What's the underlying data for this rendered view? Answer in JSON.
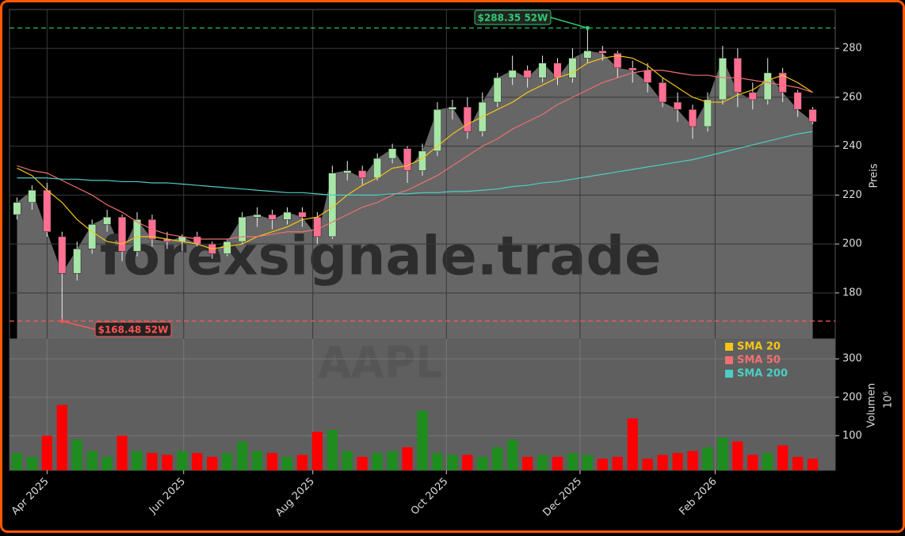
{
  "chart_data": {
    "type": "candlestick",
    "watermark": "forexsignale.trade",
    "symbol": "AAPL",
    "x": [
      0,
      1,
      2,
      3,
      4,
      5,
      6,
      7,
      8,
      9,
      10,
      11,
      12,
      13,
      14,
      15,
      16,
      17,
      18,
      19,
      20,
      21,
      22,
      23,
      24,
      25,
      26,
      27,
      28,
      29,
      30,
      31,
      32,
      33,
      34,
      35,
      36,
      37,
      38,
      39,
      40,
      41,
      42,
      43,
      44,
      45,
      46,
      47,
      48,
      49,
      50,
      51,
      52,
      53
    ],
    "open": [
      212,
      217,
      222,
      203,
      188,
      198,
      208,
      211,
      197,
      210,
      202,
      201,
      203,
      200,
      196,
      201,
      211,
      212,
      210,
      213,
      211,
      203,
      229,
      230,
      227,
      235,
      239,
      230,
      238,
      255,
      256,
      246,
      258,
      268,
      271,
      268,
      274,
      268,
      276,
      279,
      278,
      272,
      271,
      266,
      258,
      255,
      248,
      259,
      276,
      262,
      259,
      270,
      262,
      255
    ],
    "high": [
      219,
      224,
      225,
      205,
      201,
      210,
      214,
      212,
      213,
      212,
      205,
      204,
      205,
      201,
      202,
      213,
      215,
      214,
      215,
      215,
      213,
      232,
      234,
      232,
      237,
      241,
      240,
      241,
      258,
      259,
      260,
      262,
      270,
      277,
      273,
      277,
      276,
      280,
      288.35,
      281,
      279,
      275,
      274,
      268,
      262,
      257,
      262,
      281,
      280,
      266,
      276,
      272,
      263,
      256
    ],
    "low": [
      210,
      214,
      203,
      168.48,
      185,
      196,
      205,
      193,
      195,
      199,
      198,
      197,
      199,
      194,
      195,
      200,
      207,
      206,
      208,
      207,
      200,
      202,
      226,
      224,
      226,
      233,
      225,
      228,
      236,
      251,
      243,
      244,
      256,
      265,
      264,
      266,
      265,
      266,
      274,
      275,
      268,
      266,
      262,
      256,
      250,
      243,
      246,
      257,
      256,
      255,
      257,
      258,
      252,
      249
    ],
    "close": [
      217,
      222,
      205,
      188,
      198,
      208,
      211,
      197,
      210,
      202,
      201,
      203,
      200,
      196,
      201,
      211,
      212,
      210,
      213,
      211,
      203,
      229,
      230,
      227,
      235,
      239,
      230,
      238,
      255,
      256,
      246,
      258,
      268,
      271,
      268,
      274,
      268,
      276,
      279,
      278,
      272,
      271,
      266,
      258,
      255,
      248,
      259,
      276,
      262,
      259,
      270,
      262,
      255,
      250
    ],
    "up_color": "#a8e6a8",
    "down_color": "#ff6f91",
    "area_color": "#666666",
    "xlim": [
      -0.5,
      54.5
    ],
    "xticks": [
      {
        "value": 2,
        "label": "Apr 2025"
      },
      {
        "value": 11.1,
        "label": "Jun 2025"
      },
      {
        "value": 19.7,
        "label": "Aug 2025"
      },
      {
        "value": 28.6,
        "label": "Oct 2025"
      },
      {
        "value": 37.5,
        "label": "Dec 2025"
      },
      {
        "value": 46.5,
        "label": "Feb 2026"
      }
    ],
    "ylim": [
      161.2,
      295.9
    ],
    "yticks": [
      180,
      200,
      220,
      240,
      260,
      280
    ],
    "ylabel": "Preis",
    "grid": true,
    "series": [
      {
        "name": "SMA 20",
        "color": "#f5c518",
        "values": [
          231,
          228,
          222,
          217,
          210,
          205,
          201,
          200,
          203,
          203,
          202,
          201,
          200,
          198,
          199,
          200,
          203,
          205,
          207,
          210,
          211,
          215,
          220,
          224,
          227,
          231,
          232,
          235,
          240,
          245,
          249,
          252,
          255,
          258,
          262,
          265,
          268,
          270,
          274,
          276,
          277,
          276,
          273,
          268,
          264,
          260,
          258,
          258,
          261,
          263,
          267,
          269,
          266,
          262
        ]
      },
      {
        "name": "SMA 50",
        "color": "#f07070",
        "values": [
          232,
          230,
          229,
          226,
          223,
          220,
          216,
          213,
          209,
          206,
          204,
          203,
          202,
          202,
          202,
          203,
          203,
          204,
          205,
          205,
          206,
          209,
          212,
          215,
          217,
          220,
          222,
          225,
          228,
          232,
          236,
          240,
          243,
          247,
          250,
          253,
          257,
          260,
          263,
          266,
          268,
          270,
          271,
          271,
          270,
          269,
          269,
          268,
          268,
          267,
          266,
          265,
          264,
          262
        ]
      },
      {
        "name": "SMA 200",
        "color": "#4ecdc4",
        "values": [
          227,
          227,
          227,
          226.5,
          226.5,
          226,
          226,
          225.5,
          225.5,
          225,
          225,
          224.5,
          224,
          223.5,
          223,
          222.5,
          222,
          221.5,
          221,
          221,
          220.5,
          220,
          220,
          220,
          220,
          220.5,
          220.5,
          221,
          221,
          221.5,
          221.5,
          222,
          222.5,
          223.5,
          224,
          225,
          225.5,
          226.5,
          227.5,
          228.5,
          229.5,
          230.5,
          231.5,
          232.5,
          233.5,
          234.5,
          236,
          237.5,
          239,
          240.5,
          242,
          243.5,
          245,
          246
        ]
      }
    ],
    "annotations": [
      {
        "text": "$288.35 52W",
        "value": 288.35,
        "x": 38,
        "color": "#2ecc71"
      },
      {
        "text": "$168.48 52W",
        "value": 168.48,
        "x": 3,
        "color": "#ff5555"
      }
    ],
    "volume": {
      "values": [
        55,
        45,
        100,
        180,
        90,
        60,
        45,
        100,
        60,
        55,
        50,
        60,
        55,
        45,
        55,
        85,
        60,
        55,
        45,
        50,
        110,
        115,
        60,
        45,
        55,
        60,
        70,
        165,
        55,
        50,
        50,
        45,
        70,
        90,
        45,
        50,
        45,
        55,
        50,
        40,
        45,
        145,
        40,
        50,
        55,
        60,
        70,
        95,
        85,
        50,
        55,
        75,
        45,
        40
      ],
      "up_color": "#1e8c1e",
      "down_color": "#ff0000",
      "ylim": [
        10,
        352
      ],
      "yticks": [
        100,
        200,
        300
      ],
      "ylabel": "Volumen",
      "exponent_label": "10⁶"
    }
  }
}
